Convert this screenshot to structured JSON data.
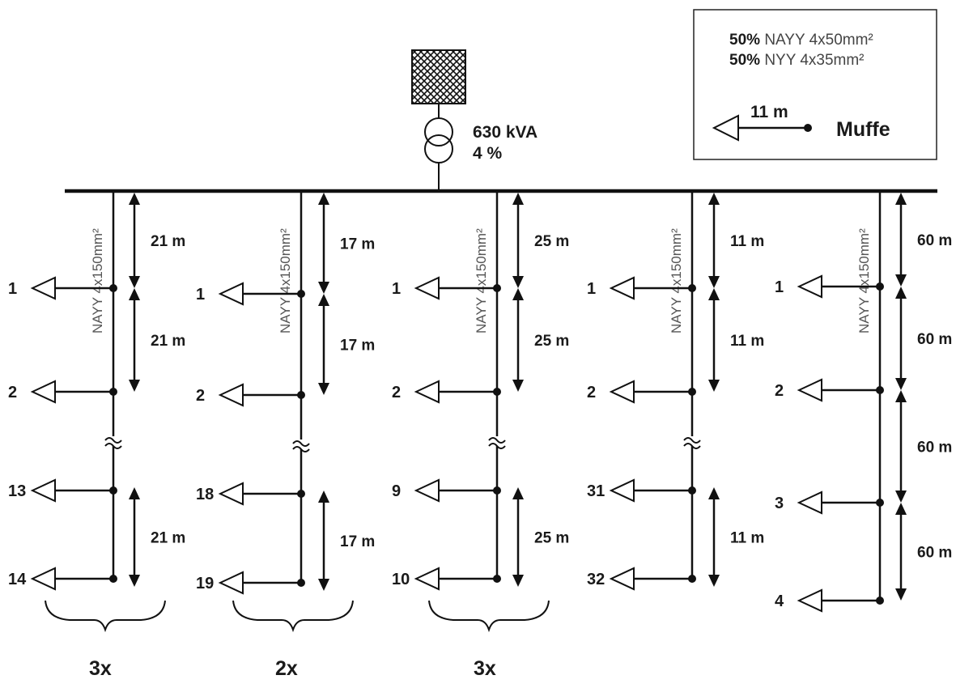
{
  "legend": {
    "cable_mix": [
      {
        "share": "50%",
        "type": "NAYY 4x50mm²"
      },
      {
        "share": "50%",
        "type": "NYY 4x35mm²"
      }
    ],
    "distance": "11  m",
    "symbol_label": "Muffe"
  },
  "transformer": {
    "rating": "630 kVA",
    "impedance": "4 %"
  },
  "feeders": [
    {
      "cable": "NAYY 4x150mm²",
      "loads": [
        {
          "label": "1",
          "kind": "normal"
        },
        {
          "label": "2",
          "kind": "normal"
        },
        {
          "label": "13",
          "kind": "normal"
        },
        {
          "label": "14",
          "kind": "normal"
        }
      ],
      "distances": [
        "21 m",
        "21 m",
        "21 m"
      ],
      "multiplier": "3x",
      "has_break": true
    },
    {
      "cable": "NAYY 4x150mm²",
      "loads": [
        {
          "label": "1",
          "kind": "normal"
        },
        {
          "label": "2",
          "kind": "normal"
        },
        {
          "label": "18",
          "kind": "normal"
        },
        {
          "label": "19",
          "kind": "normal"
        }
      ],
      "distances": [
        "17 m",
        "17 m",
        "17 m"
      ],
      "multiplier": "2x",
      "has_break": true
    },
    {
      "cable": "NAYY 4x150mm²",
      "loads": [
        {
          "label": "1",
          "kind": "normal"
        },
        {
          "label": "2",
          "kind": "normal"
        },
        {
          "label": "9",
          "kind": "normal"
        },
        {
          "label": "10",
          "kind": "normal"
        }
      ],
      "distances": [
        "25 m",
        "25 m",
        "25 m"
      ],
      "multiplier": "3x",
      "has_break": true
    },
    {
      "cable": "NAYY 4x150mm²",
      "loads": [
        {
          "label": "1",
          "kind": "normal"
        },
        {
          "label": "2",
          "kind": "normal"
        },
        {
          "label": "31",
          "kind": "normal"
        },
        {
          "label": "32",
          "kind": "normal"
        }
      ],
      "distances": [
        "11 m",
        "11 m",
        "11 m"
      ],
      "multiplier": "",
      "has_break": true
    },
    {
      "cable": "NAYY 4x150mm²",
      "loads": [
        {
          "label": "1",
          "kind": "normal"
        },
        {
          "label": "2",
          "kind": "normal"
        },
        {
          "label": "3",
          "kind": "normal"
        },
        {
          "label": "4",
          "kind": "normal"
        }
      ],
      "distances": [
        "60 m",
        "60 m",
        "60 m",
        "60 m"
      ],
      "multiplier": "",
      "has_break": false
    }
  ]
}
